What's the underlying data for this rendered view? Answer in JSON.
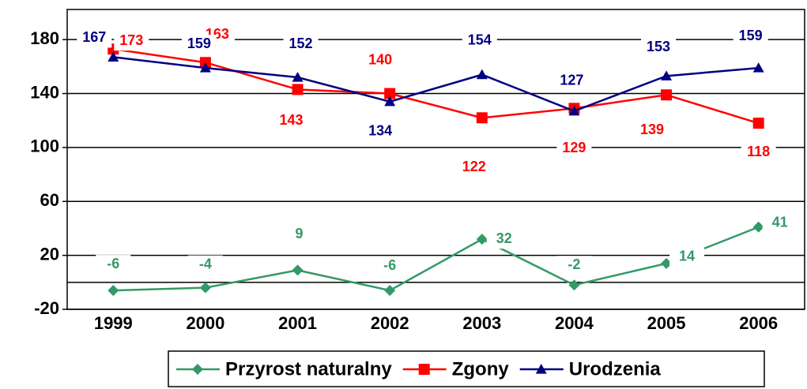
{
  "chart_data": {
    "type": "line",
    "categories": [
      "1999",
      "2000",
      "2001",
      "2002",
      "2003",
      "2004",
      "2005",
      "2006"
    ],
    "series": [
      {
        "name": "Przyrost naturalny",
        "color": "#339966",
        "marker": "diamond",
        "values": [
          -6,
          -4,
          9,
          -6,
          32,
          -2,
          14,
          41
        ]
      },
      {
        "name": "Zgony",
        "color": "#ff0000",
        "marker": "square",
        "values": [
          173,
          163,
          143,
          140,
          122,
          129,
          139,
          118
        ]
      },
      {
        "name": "Urodzenia",
        "color": "#000080",
        "marker": "triangle",
        "values": [
          167,
          159,
          152,
          134,
          154,
          127,
          153,
          159
        ]
      }
    ],
    "ylim": [
      -20,
      200
    ],
    "yticks": [
      -20,
      20,
      60,
      100,
      140,
      180
    ],
    "grid": true,
    "legend": "bottom"
  }
}
